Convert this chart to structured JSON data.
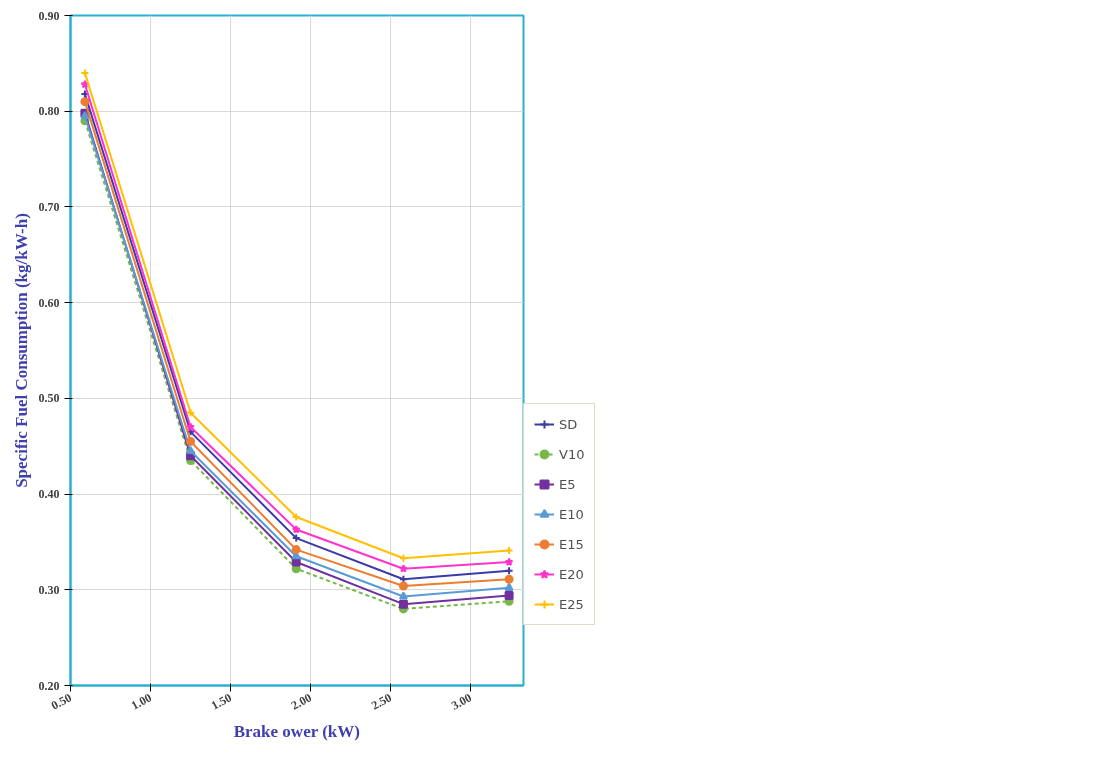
{
  "chart_data": {
    "type": "line",
    "xlabel": "Brake ower (kW)",
    "ylabel": "Specific Fuel Consumption (kg/kW-h)",
    "x": [
      0.59,
      1.25,
      1.91,
      2.58,
      3.24
    ],
    "xlim": [
      0.5,
      3.33
    ],
    "ylim": [
      0.2,
      0.9
    ],
    "xticks": [
      {
        "value": 0.5,
        "label": "0.50"
      },
      {
        "value": 1.0,
        "label": "1.00"
      },
      {
        "value": 1.5,
        "label": "1.50"
      },
      {
        "value": 2.0,
        "label": "2.00"
      },
      {
        "value": 2.5,
        "label": "2.50"
      },
      {
        "value": 3.0,
        "label": "3.00"
      }
    ],
    "yticks": [
      {
        "value": 0.2,
        "label": "0.20"
      },
      {
        "value": 0.3,
        "label": "0.30"
      },
      {
        "value": 0.4,
        "label": "0.40"
      },
      {
        "value": 0.5,
        "label": "0.50"
      },
      {
        "value": 0.6,
        "label": "0.60"
      },
      {
        "value": 0.7,
        "label": "0.70"
      },
      {
        "value": 0.8,
        "label": "0.80"
      },
      {
        "value": 0.9,
        "label": "0.90"
      }
    ],
    "grid": true,
    "legend": "right",
    "series": [
      {
        "name": "SD",
        "color": "#3b3ba8",
        "marker": "cross",
        "values": [
          0.818,
          0.465,
          0.354,
          0.311,
          0.32
        ]
      },
      {
        "name": "V10",
        "color": "#77b84a",
        "marker": "circle",
        "line_style": "dashed",
        "values": [
          0.79,
          0.435,
          0.322,
          0.28,
          0.288
        ]
      },
      {
        "name": "E5",
        "color": "#7030a0",
        "marker": "square",
        "values": [
          0.798,
          0.44,
          0.329,
          0.285,
          0.294
        ]
      },
      {
        "name": "E10",
        "color": "#5b9bd5",
        "marker": "triangle",
        "values": [
          0.795,
          0.445,
          0.335,
          0.293,
          0.302
        ]
      },
      {
        "name": "E15",
        "color": "#ed7d31",
        "marker": "circle",
        "values": [
          0.81,
          0.455,
          0.342,
          0.304,
          0.311
        ]
      },
      {
        "name": "E20",
        "color": "#ff33cc",
        "marker": "star",
        "values": [
          0.828,
          0.47,
          0.363,
          0.322,
          0.329
        ]
      },
      {
        "name": "E25",
        "color": "#ffc000",
        "marker": "cross",
        "values": [
          0.84,
          0.485,
          0.376,
          0.333,
          0.341
        ]
      }
    ]
  }
}
